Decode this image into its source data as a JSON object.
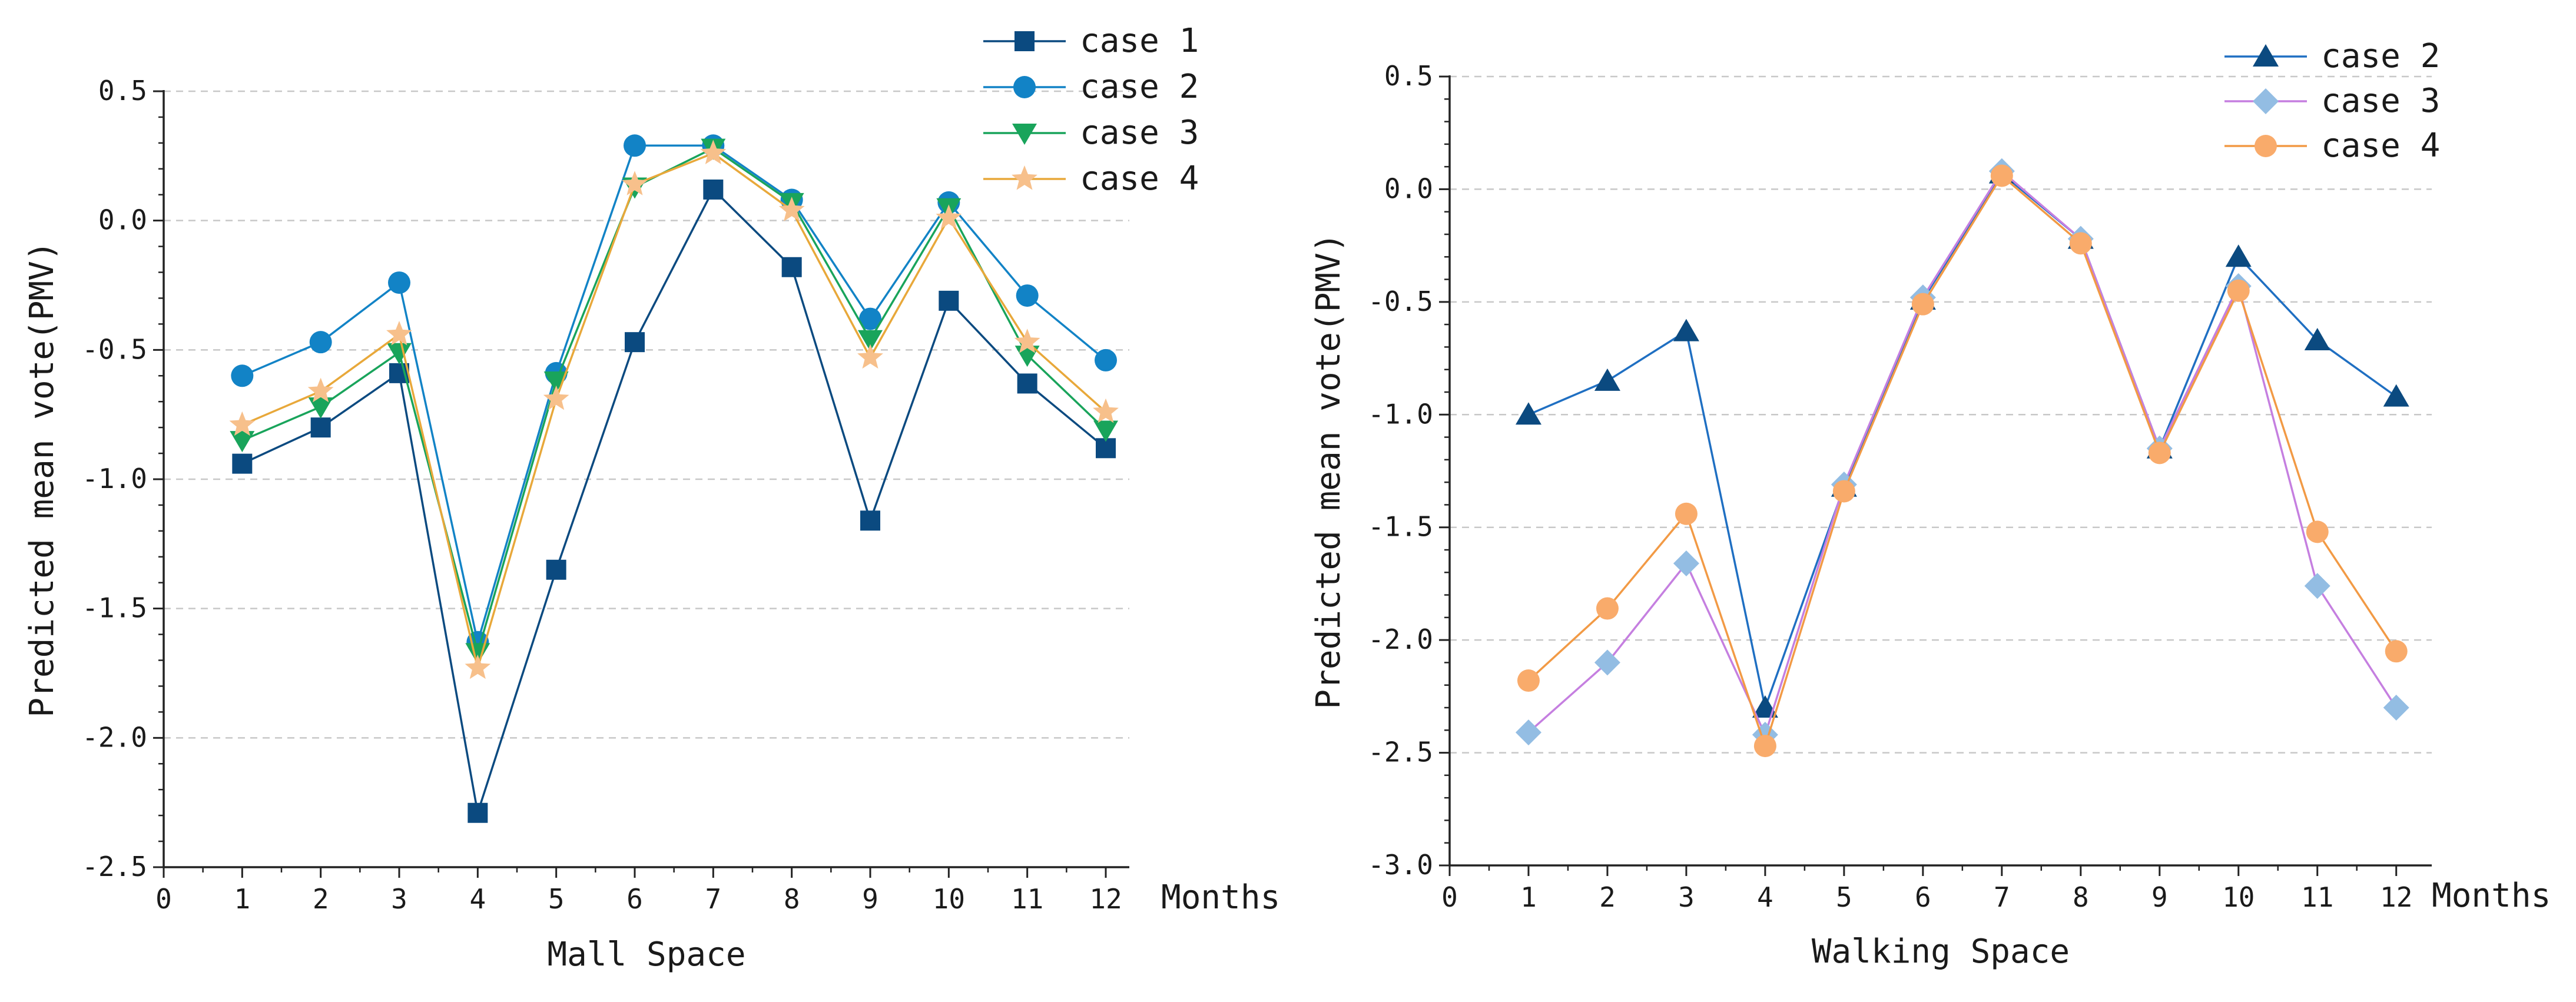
{
  "chart_data": [
    {
      "type": "line",
      "id": "left",
      "xlabel": "Mall Space",
      "x_end_label": "Months",
      "ylabel": "Predicted mean vote(PMV)",
      "xlim": [
        0,
        12.3
      ],
      "ylim": [
        -2.5,
        0.5
      ],
      "x_ticks": [
        0,
        1,
        2,
        3,
        4,
        5,
        6,
        7,
        8,
        9,
        10,
        11,
        12
      ],
      "y_ticks": [
        -2.5,
        -2.0,
        -1.5,
        -1.0,
        -0.5,
        0.0,
        0.5
      ],
      "y_tick_labels": [
        "-2.5",
        "-2.0",
        "-1.5",
        "-1.0",
        "-0.5",
        "0.0",
        "0.5"
      ],
      "grid": "horizontal-dashed",
      "legend_position": "top-right",
      "x": [
        1,
        2,
        3,
        4,
        5,
        6,
        7,
        8,
        9,
        10,
        11,
        12
      ],
      "series": [
        {
          "name": "case 1",
          "color": "#0b4a80",
          "marker": "square",
          "values": [
            -0.94,
            -0.8,
            -0.59,
            -2.29,
            -1.35,
            -0.47,
            0.12,
            -0.18,
            -1.16,
            -0.31,
            -0.63,
            -0.88
          ]
        },
        {
          "name": "case 2",
          "color": "#1283c6",
          "marker": "circle",
          "values": [
            -0.6,
            -0.47,
            -0.24,
            -1.63,
            -0.59,
            0.29,
            0.29,
            0.08,
            -0.38,
            0.07,
            -0.29,
            -0.54
          ]
        },
        {
          "name": "case 3",
          "color": "#19a45b",
          "marker": "triangle-down",
          "values": [
            -0.85,
            -0.72,
            -0.51,
            -1.67,
            -0.62,
            0.13,
            0.28,
            0.07,
            -0.46,
            0.05,
            -0.52,
            -0.81
          ]
        },
        {
          "name": "case 4",
          "color": "#f7c08b",
          "marker": "star",
          "line_color": "#e8a83a",
          "values": [
            -0.79,
            -0.66,
            -0.44,
            -1.73,
            -0.69,
            0.14,
            0.26,
            0.04,
            -0.53,
            0.01,
            -0.47,
            -0.74
          ]
        }
      ]
    },
    {
      "type": "line",
      "id": "right",
      "xlabel": "Walking Space",
      "x_end_label": "Months",
      "ylabel": "Predicted mean vote(PMV)",
      "xlim": [
        0,
        12.45
      ],
      "ylim": [
        -3.0,
        0.5
      ],
      "x_ticks": [
        0,
        1,
        2,
        3,
        4,
        5,
        6,
        7,
        8,
        9,
        10,
        11,
        12
      ],
      "y_ticks": [
        -3.0,
        -2.5,
        -2.0,
        -1.5,
        -1.0,
        -0.5,
        0.0,
        0.5
      ],
      "y_tick_labels": [
        "-3.0",
        "-2.5",
        "-2.0",
        "-1.5",
        "-1.0",
        "-0.5",
        "0.0",
        "0.5"
      ],
      "grid": "horizontal-dashed",
      "legend_position": "top-right",
      "x": [
        1,
        2,
        3,
        4,
        5,
        6,
        7,
        8,
        9,
        10,
        11,
        12
      ],
      "series": [
        {
          "name": "case 2",
          "color": "#0b4a80",
          "marker": "triangle-up",
          "line_color": "#1f6fc2",
          "values": [
            -1.0,
            -0.85,
            -0.63,
            -2.3,
            -1.32,
            -0.49,
            0.07,
            -0.22,
            -1.15,
            -0.3,
            -0.67,
            -0.92
          ]
        },
        {
          "name": "case 3",
          "color": "#93bde3",
          "marker": "diamond",
          "line_color": "#c57fe0",
          "values": [
            -2.41,
            -2.1,
            -1.66,
            -2.42,
            -1.31,
            -0.48,
            0.08,
            -0.22,
            -1.15,
            -0.43,
            -1.76,
            -2.3
          ]
        },
        {
          "name": "case 4",
          "color": "#f9ab6b",
          "marker": "circle",
          "line_color": "#f29a45",
          "values": [
            -2.18,
            -1.86,
            -1.44,
            -2.47,
            -1.34,
            -0.51,
            0.06,
            -0.24,
            -1.17,
            -0.45,
            -1.52,
            -2.05
          ]
        }
      ]
    }
  ]
}
